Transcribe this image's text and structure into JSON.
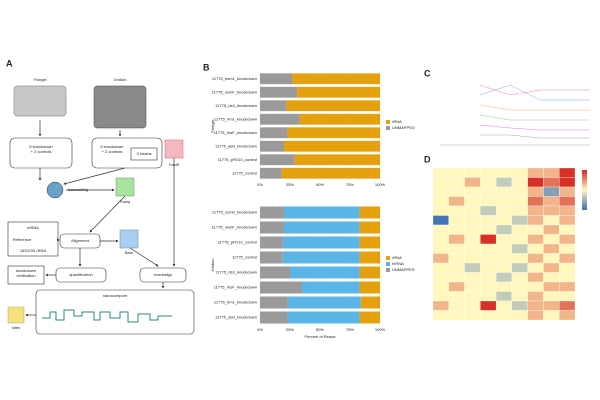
{
  "panel_labels": [
    "A",
    "B",
    "C",
    "D"
  ],
  "diagram": {
    "nodes": [
      {
        "lines": [
          "Flongle"
        ]
      },
      {
        "lines": [
          "Gridion"
        ]
      },
      {
        "lines": [
          "6 knockdown",
          "+ 2 controls"
        ]
      },
      {
        "lines": [
          "6 knockdown",
          "+ 2 controls"
        ]
      },
      {
        "lines": [
          "3 strains"
        ]
      },
      {
        "lines": [
          "Fast5"
        ]
      },
      {
        "lines": [
          "basecalling"
        ]
      },
      {
        "lines": [
          "Fastq"
        ]
      },
      {
        "lines": [
          "mRNA"
        ]
      },
      {
        "lines": [
          "Reference"
        ]
      },
      {
        "lines": [
          "16S/23S rRNA"
        ]
      },
      {
        "lines": [
          "Alignment"
        ]
      },
      {
        "lines": [
          "Bam"
        ]
      },
      {
        "lines": [
          "knockdown",
          "verification"
        ]
      },
      {
        "lines": [
          "quantification"
        ]
      },
      {
        "lines": [
          "eventalign"
        ]
      },
      {
        "lines": [
          "nanocompore"
        ]
      },
      {
        "lines": [
          "sites"
        ]
      }
    ]
  },
  "chart_data": [
    {
      "type": "bar",
      "orientation": "horizontal",
      "stacked": true,
      "facet_label": "Flongle",
      "categories": [
        "11775_nsm1_knockdown",
        "11775_nsmF_knockdown",
        "11775_rls3_knockdown",
        "11775_rlm1_knockdown",
        "11775_rhsF_knockdown",
        "11775_add_knockdown",
        "11775_pFD10_control",
        "11775_control"
      ],
      "series": [
        {
          "name": "rRNA",
          "color": "#e5a00d",
          "values": [
            73,
            69,
            78,
            67,
            77,
            80,
            71,
            82
          ]
        },
        {
          "name": "UNMAPPED",
          "color": "#9a9a9a",
          "values": [
            27,
            31,
            22,
            33,
            23,
            20,
            29,
            18
          ]
        }
      ],
      "xlim": [
        0,
        100
      ],
      "xticks": [
        {
          "value": 0,
          "label": "0%"
        },
        {
          "value": 25,
          "label": "25%"
        },
        {
          "value": 50,
          "label": "50%"
        },
        {
          "value": 75,
          "label": "75%"
        },
        {
          "value": 100,
          "label": "100%"
        }
      ]
    },
    {
      "type": "bar",
      "orientation": "horizontal",
      "stacked": true,
      "facet_label": "Gridion",
      "xlabel": "Percent of Reads",
      "categories": [
        "11775_nsm0_knockdown",
        "11775_nsmF_knockdown",
        "11775_pFD10_control",
        "11775_control",
        "11775_rls3_knockdown",
        "11775_rhsF_knockdown",
        "11775_rlm1_knockdown",
        "11775_add_knockdown"
      ],
      "series": [
        {
          "name": "rRNA",
          "color": "#e5a00d",
          "values": [
            17,
            17,
            17,
            17,
            17,
            17,
            16,
            17
          ]
        },
        {
          "name": "mRNA",
          "color": "#5ab4e5",
          "values": [
            63,
            63,
            64,
            64,
            58,
            48,
            61,
            60
          ]
        },
        {
          "name": "UNMAPPED",
          "color": "#9a9a9a",
          "values": [
            20,
            20,
            19,
            19,
            25,
            35,
            23,
            23
          ]
        }
      ],
      "xlim": [
        0,
        100
      ],
      "xticks": [
        {
          "value": 0,
          "label": "0%"
        },
        {
          "value": 25,
          "label": "25%"
        },
        {
          "value": 50,
          "label": "50%"
        },
        {
          "value": 75,
          "label": "75%"
        },
        {
          "value": 100,
          "label": "100%"
        }
      ]
    },
    {
      "type": "heatmap",
      "zlim": [
        -3,
        3
      ],
      "colors": [
        "#4575b4",
        "#fff7bc",
        "#d73027"
      ],
      "values": [
        [
          0,
          0,
          0,
          0,
          0,
          0,
          1,
          1,
          3
        ],
        [
          0,
          0,
          1,
          0,
          -1,
          0,
          3,
          2,
          3
        ],
        [
          0,
          0,
          0,
          0,
          0,
          0,
          1,
          -2,
          1
        ],
        [
          0,
          1,
          0,
          0,
          0,
          0,
          2,
          1,
          2
        ],
        [
          0,
          0,
          0,
          -1,
          0,
          0,
          1,
          1,
          1
        ],
        [
          -3,
          0,
          0,
          0,
          0,
          -1,
          1,
          0,
          1
        ],
        [
          0,
          0,
          0,
          0,
          -1,
          0,
          0,
          1,
          0
        ],
        [
          0,
          1,
          0,
          3,
          0,
          0,
          1,
          0,
          1
        ],
        [
          0,
          0,
          0,
          0,
          0,
          -1,
          0,
          1,
          0
        ],
        [
          1,
          0,
          0,
          0,
          0,
          0,
          1,
          0,
          1
        ],
        [
          0,
          0,
          -1,
          0,
          0,
          -1,
          0,
          1,
          0
        ],
        [
          0,
          0,
          0,
          0,
          -1,
          0,
          1,
          0,
          0
        ],
        [
          0,
          1,
          0,
          0,
          0,
          0,
          0,
          1,
          1
        ],
        [
          0,
          0,
          0,
          0,
          -1,
          0,
          1,
          0,
          0
        ],
        [
          1,
          0,
          0,
          3,
          0,
          -1,
          1,
          1,
          2
        ],
        [
          0,
          0,
          0,
          0,
          0,
          0,
          1,
          0,
          1
        ]
      ]
    }
  ]
}
